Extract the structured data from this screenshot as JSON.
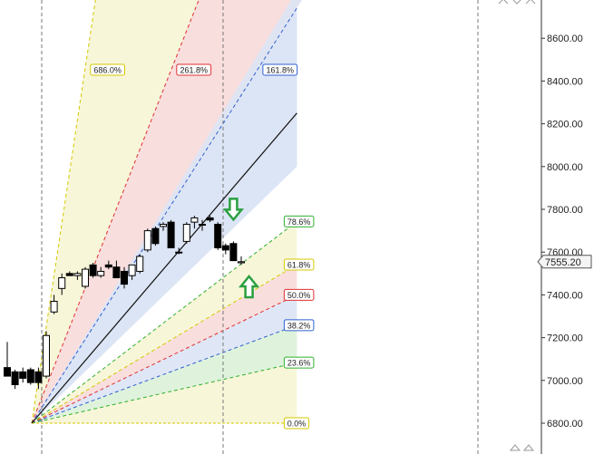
{
  "chart_data": {
    "type": "candlestick",
    "y_axis": {
      "ticks": [
        "8600.00",
        "8400.00",
        "8200.00",
        "8000.00",
        "7800.00",
        "7600.00",
        "7400.00",
        "7200.00",
        "7000.00",
        "6800.00"
      ],
      "tick_values": [
        8600,
        8400,
        8200,
        8000,
        7800,
        7600,
        7400,
        7200,
        7000,
        6800
      ],
      "range": [
        6660,
        8740
      ]
    },
    "current_price": {
      "label": "7555.20",
      "value": 7555.2
    },
    "fan_anchor": {
      "bar_index": 0,
      "price": 6800
    },
    "fan_span_bars": 34,
    "fan_high": 8000,
    "trendline": {
      "from_price": 6800,
      "to_price": 8250,
      "bars": 34
    },
    "fib_fan_levels": [
      {
        "label": "686.0%",
        "ratio": 6.86,
        "color": "#d4c800"
      },
      {
        "label": "261.8%",
        "ratio": 2.618,
        "color": "#e03030"
      },
      {
        "label": "161.8%",
        "ratio": 1.618,
        "color": "#3060d0"
      },
      {
        "label": "78.6%",
        "ratio": 0.786,
        "color": "#30b030"
      },
      {
        "label": "61.8%",
        "ratio": 0.618,
        "color": "#d4c800"
      },
      {
        "label": "50.0%",
        "ratio": 0.5,
        "color": "#e03030"
      },
      {
        "label": "38.2%",
        "ratio": 0.382,
        "color": "#3060d0"
      },
      {
        "label": "23.6%",
        "ratio": 0.236,
        "color": "#30b030"
      },
      {
        "label": "0.0%",
        "ratio": 0.0,
        "color": "#d4c800"
      }
    ],
    "candles": [
      {
        "o": 7060,
        "h": 7180,
        "l": 7020,
        "c": 7020
      },
      {
        "o": 7040,
        "h": 7050,
        "l": 6960,
        "c": 6980
      },
      {
        "o": 7040,
        "h": 7060,
        "l": 6990,
        "c": 7010
      },
      {
        "o": 7050,
        "h": 7060,
        "l": 6980,
        "c": 6990
      },
      {
        "o": 7040,
        "h": 7060,
        "l": 6960,
        "c": 6990
      },
      {
        "o": 7020,
        "h": 7230,
        "l": 7010,
        "c": 7210
      },
      {
        "o": 7320,
        "h": 7400,
        "l": 7310,
        "c": 7370
      },
      {
        "o": 7430,
        "h": 7500,
        "l": 7400,
        "c": 7480
      },
      {
        "o": 7500,
        "h": 7510,
        "l": 7490,
        "c": 7490
      },
      {
        "o": 7490,
        "h": 7510,
        "l": 7470,
        "c": 7500
      },
      {
        "o": 7440,
        "h": 7530,
        "l": 7430,
        "c": 7520
      },
      {
        "o": 7540,
        "h": 7550,
        "l": 7480,
        "c": 7490
      },
      {
        "o": 7490,
        "h": 7530,
        "l": 7480,
        "c": 7510
      },
      {
        "o": 7540,
        "h": 7560,
        "l": 7520,
        "c": 7530
      },
      {
        "o": 7530,
        "h": 7560,
        "l": 7500,
        "c": 7480
      },
      {
        "o": 7510,
        "h": 7530,
        "l": 7430,
        "c": 7450
      },
      {
        "o": 7490,
        "h": 7540,
        "l": 7470,
        "c": 7540
      },
      {
        "o": 7510,
        "h": 7590,
        "l": 7500,
        "c": 7580
      },
      {
        "o": 7610,
        "h": 7710,
        "l": 7600,
        "c": 7700
      },
      {
        "o": 7710,
        "h": 7720,
        "l": 7630,
        "c": 7640
      },
      {
        "o": 7720,
        "h": 7740,
        "l": 7700,
        "c": 7730
      },
      {
        "o": 7740,
        "h": 7750,
        "l": 7620,
        "c": 7620
      },
      {
        "o": 7600,
        "h": 7620,
        "l": 7590,
        "c": 7600
      },
      {
        "o": 7650,
        "h": 7740,
        "l": 7640,
        "c": 7730
      },
      {
        "o": 7740,
        "h": 7770,
        "l": 7710,
        "c": 7760
      },
      {
        "o": 7730,
        "h": 7750,
        "l": 7700,
        "c": 7730
      },
      {
        "o": 7760,
        "h": 7770,
        "l": 7740,
        "c": 7750
      },
      {
        "o": 7730,
        "h": 7740,
        "l": 7610,
        "c": 7620
      },
      {
        "o": 7630,
        "h": 7640,
        "l": 7590,
        "c": 7610
      },
      {
        "o": 7640,
        "h": 7650,
        "l": 7560,
        "c": 7560
      },
      {
        "o": 7550,
        "h": 7580,
        "l": 7540,
        "c": 7555
      }
    ],
    "annotations": [
      {
        "kind": "down-arrow",
        "color": "#2aa040",
        "bar_index": 29,
        "price": 7790
      },
      {
        "kind": "up-arrow",
        "color": "#2aa040",
        "bar_index": 31,
        "price": 7440
      }
    ],
    "colors": {
      "bull_fill": "#ffffff",
      "bear_fill": "#000000",
      "candle_outline": "#000000",
      "grid_line": "#888888",
      "price_tag_bg": "#f4f4f4"
    }
  }
}
